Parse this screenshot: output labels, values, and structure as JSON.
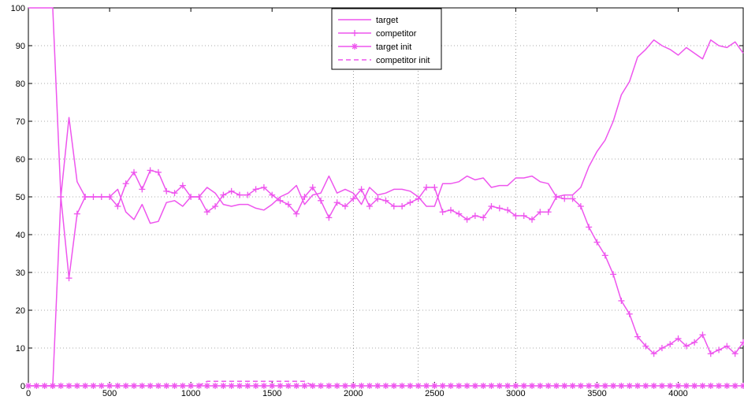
{
  "chart_data": {
    "type": "line",
    "xlim": [
      0,
      4400
    ],
    "ylim": [
      0,
      100
    ],
    "xticks": [
      0,
      500,
      1000,
      1500,
      2000,
      2500,
      3000,
      3500,
      4000
    ],
    "yticks": [
      0,
      10,
      20,
      30,
      40,
      50,
      60,
      70,
      80,
      90,
      100
    ],
    "grid": "dotted at selected vertical lines and all horizontal lines",
    "legend_position": "top-center",
    "line_color": "#ee55ee",
    "series": [
      {
        "name": "target",
        "style": "solid",
        "x": [
          0,
          150,
          200,
          250,
          300,
          350,
          400,
          450,
          500,
          550,
          600,
          650,
          700,
          750,
          800,
          850,
          900,
          950,
          1000,
          1050,
          1100,
          1150,
          1200,
          1250,
          1300,
          1350,
          1400,
          1450,
          1500,
          1550,
          1600,
          1650,
          1700,
          1750,
          1800,
          1850,
          1900,
          1950,
          2000,
          2050,
          2100,
          2150,
          2200,
          2250,
          2300,
          2350,
          2400,
          2450,
          2500,
          2550,
          2600,
          2650,
          2700,
          2750,
          2800,
          2850,
          2900,
          2950,
          3000,
          3050,
          3100,
          3150,
          3200,
          3250,
          3300,
          3350,
          3400,
          3450,
          3500,
          3550,
          3600,
          3650,
          3700,
          3750,
          3800,
          3850,
          3900,
          3950,
          4000,
          4050,
          4100,
          4150,
          4200,
          4250,
          4300,
          4350,
          4400
        ],
        "y": [
          100,
          100,
          50,
          71,
          54,
          50,
          50,
          50,
          50,
          52,
          46,
          44,
          48,
          43,
          43.5,
          48.5,
          49,
          47.5,
          50,
          50,
          52.5,
          51,
          48,
          47.5,
          48,
          48,
          47,
          46.5,
          48,
          50,
          51,
          53,
          48,
          50.5,
          51,
          55.5,
          51,
          52,
          51,
          48,
          52.5,
          50.5,
          51,
          52,
          52,
          51.5,
          50,
          47.5,
          47.5,
          53.5,
          53.5,
          54,
          55.5,
          54.5,
          55,
          52.5,
          53,
          53,
          55,
          55,
          55.5,
          54,
          53.5,
          50,
          50.5,
          50.5,
          52.5,
          58,
          62,
          65,
          70,
          77,
          80.5,
          87,
          89,
          91.5,
          90,
          89,
          87.5,
          89.5,
          88,
          86.5,
          91.5,
          90,
          89.5,
          91,
          88
        ]
      },
      {
        "name": "competitor",
        "style": "solid with + markers",
        "x": [
          0,
          150,
          200,
          250,
          300,
          350,
          400,
          450,
          500,
          550,
          600,
          650,
          700,
          750,
          800,
          850,
          900,
          950,
          1000,
          1050,
          1100,
          1150,
          1200,
          1250,
          1300,
          1350,
          1400,
          1450,
          1500,
          1550,
          1600,
          1650,
          1700,
          1750,
          1800,
          1850,
          1900,
          1950,
          2000,
          2050,
          2100,
          2150,
          2200,
          2250,
          2300,
          2350,
          2400,
          2450,
          2500,
          2550,
          2600,
          2650,
          2700,
          2750,
          2800,
          2850,
          2900,
          2950,
          3000,
          3050,
          3100,
          3150,
          3200,
          3250,
          3300,
          3350,
          3400,
          3450,
          3500,
          3550,
          3600,
          3650,
          3700,
          3750,
          3800,
          3850,
          3900,
          3950,
          4000,
          4050,
          4100,
          4150,
          4200,
          4250,
          4300,
          4350,
          4400
        ],
        "y": [
          0,
          0,
          50,
          28.5,
          45.5,
          50,
          50,
          50,
          50,
          47.5,
          53.5,
          56.5,
          52,
          57,
          56.5,
          51.5,
          51,
          53,
          50,
          50,
          46,
          47.5,
          50.5,
          51.5,
          50.5,
          50.5,
          52,
          52.5,
          50.5,
          49,
          48,
          45.5,
          50,
          52.5,
          49,
          44.5,
          48.5,
          47.5,
          49.5,
          52,
          47.5,
          49.5,
          49,
          47.5,
          47.5,
          48.5,
          49.5,
          52.5,
          52.5,
          46,
          46.5,
          45.5,
          44,
          45,
          44.5,
          47.5,
          47,
          46.5,
          45,
          45,
          44,
          46,
          46,
          50,
          49.5,
          49.5,
          47.5,
          42,
          38,
          34.5,
          29.5,
          22.5,
          19,
          13,
          10.5,
          8.5,
          10,
          11,
          12.5,
          10.5,
          11.5,
          13.5,
          8.5,
          9.5,
          10.5,
          8.5,
          11.5
        ]
      },
      {
        "name": "target init",
        "style": "solid with * markers",
        "x": [
          0,
          4400
        ],
        "y": [
          0,
          0
        ]
      },
      {
        "name": "competitor init",
        "style": "dashed",
        "x": [
          1050,
          1100,
          1150,
          1700,
          1750
        ],
        "y": [
          0,
          1.2,
          1.2,
          1.2,
          0
        ]
      }
    ]
  }
}
